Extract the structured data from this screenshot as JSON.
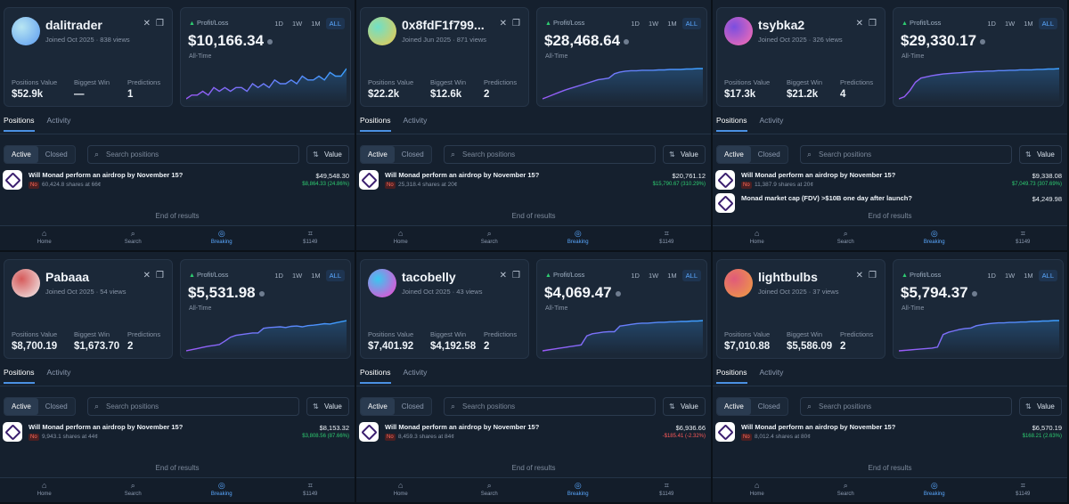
{
  "nav": {
    "home": "Home",
    "search": "Search",
    "breaking": "Breaking",
    "portfolio": "$1149"
  },
  "icons": {
    "profile_a": "crossed-arrows-icon",
    "profile_b": "gift-icon",
    "search": "search-icon",
    "sort": "sort-icon",
    "home": "home-icon",
    "breaking": "breaking-icon",
    "portfolio": "chart-icon"
  },
  "labels": {
    "pnl": "Profit/Loss",
    "alltime": "All-Time",
    "ranges": [
      "1D",
      "1W",
      "1M",
      "ALL"
    ],
    "positions_value": "Positions Value",
    "biggest_win": "Biggest Win",
    "predictions": "Predictions",
    "tab_positions": "Positions",
    "tab_activity": "Activity",
    "active": "Active",
    "closed": "Closed",
    "search_placeholder": "Search positions",
    "value_btn": "Value",
    "end": "End of results",
    "no": "No"
  },
  "colors": {
    "up": "#2ecc71",
    "down": "#ff5a5a",
    "accent": "#4a90e2"
  },
  "panels": [
    {
      "username": "dalitrader",
      "joined": "Joined Oct 2025 · 838 views",
      "pnl": "$10,166.34",
      "positions_value": "$52.9k",
      "biggest_win": "—",
      "predictions": "1",
      "avatar": [
        "#5b9bf0",
        "#b8e6f2"
      ],
      "chart_data": {
        "type": "line",
        "values": [
          2,
          3,
          3,
          4,
          3,
          5,
          4,
          5,
          4,
          5,
          5,
          4,
          6,
          5,
          6,
          5,
          7,
          6,
          6,
          7,
          6,
          8,
          7,
          7,
          8,
          7,
          9,
          8,
          8,
          10
        ]
      },
      "positions": [
        {
          "title": "Will Monad perform an airdrop by November 15?",
          "shares": "60,424.8 shares at 66¢",
          "value": "$49,548.30",
          "change": "$8,864.33 (24.86%)",
          "dir": "up"
        }
      ]
    },
    {
      "username": "0x8fdF1f799...",
      "joined": "Joined Jun 2025 · 871 views",
      "pnl": "$28,468.64",
      "positions_value": "$22.2k",
      "biggest_win": "$12.6k",
      "predictions": "2",
      "avatar": [
        "#f0c84a",
        "#6ee0c8"
      ],
      "chart_data": {
        "type": "line",
        "values": [
          1,
          1.5,
          2,
          2.5,
          3,
          3.4,
          3.8,
          4.2,
          4.6,
          5,
          5.4,
          5.6,
          5.8,
          6.8,
          7.2,
          7.4,
          7.5,
          7.5,
          7.6,
          7.6,
          7.6,
          7.7,
          7.7,
          7.8,
          7.8,
          7.8,
          7.9,
          7.9,
          8,
          8
        ]
      },
      "positions": [
        {
          "title": "Will Monad perform an airdrop by November 15?",
          "shares": "25,318.4 shares at 20¢",
          "value": "$20,761.12",
          "change": "$15,790.67 (310.29%)",
          "dir": "up"
        }
      ]
    },
    {
      "username": "tsybka2",
      "joined": "Joined Oct 2025 · 326 views",
      "pnl": "$29,330.17",
      "positions_value": "$17.3k",
      "biggest_win": "$21.2k",
      "predictions": "4",
      "avatar": [
        "#ff6fb0",
        "#7a4ee0"
      ],
      "chart_data": {
        "type": "line",
        "values": [
          1,
          1.5,
          3,
          5,
          6,
          6.3,
          6.6,
          6.8,
          7,
          7.1,
          7.2,
          7.3,
          7.4,
          7.5,
          7.6,
          7.6,
          7.7,
          7.7,
          7.8,
          7.8,
          7.9,
          7.9,
          8,
          8,
          8,
          8.1,
          8.1,
          8.2,
          8.2,
          8.3
        ]
      },
      "positions": [
        {
          "title": "Will Monad perform an airdrop by November 15?",
          "shares": "11,387.9 shares at 20¢",
          "value": "$9,338.08",
          "change": "$7,049.73 (307.69%)",
          "dir": "up"
        },
        {
          "title": "Monad market cap (FDV) >$10B one day after launch?",
          "shares": "",
          "value": "$4,249.98",
          "change": "",
          "dir": "down"
        }
      ]
    },
    {
      "username": "Pabaaa",
      "joined": "Joined Oct 2025 · 54 views",
      "pnl": "$5,531.98",
      "positions_value": "$8,700.19",
      "biggest_win": "$1,673.70",
      "predictions": "2",
      "avatar": [
        "#f2f2f2",
        "#d65a5a"
      ],
      "chart_data": {
        "type": "line",
        "values": [
          1,
          1.3,
          1.6,
          1.9,
          2.2,
          2.4,
          2.6,
          3.5,
          4.5,
          5,
          5.2,
          5.4,
          5.6,
          5.6,
          6.8,
          7,
          7.1,
          7.2,
          7,
          7.3,
          7.4,
          7.2,
          7.5,
          7.6,
          7.8,
          8,
          7.9,
          8.2,
          8.5,
          8.8
        ]
      },
      "positions": [
        {
          "title": "Will Monad perform an airdrop by November 15?",
          "shares": "9,943.1 shares at 44¢",
          "value": "$8,153.32",
          "change": "$3,808.56 (87.66%)",
          "dir": "up"
        }
      ]
    },
    {
      "username": "tacobelly",
      "joined": "Joined Oct 2025 · 43 views",
      "pnl": "$4,069.47",
      "positions_value": "$7,401.92",
      "biggest_win": "$4,192.58",
      "predictions": "2",
      "avatar": [
        "#ff3fd0",
        "#38c8f0"
      ],
      "chart_data": {
        "type": "line",
        "values": [
          1,
          1.2,
          1.4,
          1.6,
          1.8,
          2,
          2.2,
          2.4,
          4.5,
          5,
          5.2,
          5.4,
          5.5,
          5.5,
          6.8,
          7,
          7.2,
          7.4,
          7.5,
          7.5,
          7.6,
          7.7,
          7.7,
          7.8,
          7.8,
          7.9,
          7.9,
          8,
          8,
          8.1
        ]
      },
      "positions": [
        {
          "title": "Will Monad perform an airdrop by November 15?",
          "shares": "8,459.3 shares at 84¢",
          "value": "$6,936.66",
          "change": "-$185.41 (-2.32%)",
          "dir": "down"
        }
      ]
    },
    {
      "username": "lightbulbs",
      "joined": "Joined Oct 2025 · 37 views",
      "pnl": "$5,794.37",
      "positions_value": "$7,010.88",
      "biggest_win": "$5,586.09",
      "predictions": "2",
      "avatar": [
        "#f0a040",
        "#e05a7a"
      ],
      "chart_data": {
        "type": "line",
        "values": [
          1,
          1.1,
          1.2,
          1.3,
          1.4,
          1.5,
          1.6,
          1.8,
          4.5,
          5,
          5.3,
          5.6,
          5.8,
          5.9,
          6.4,
          6.6,
          6.8,
          6.9,
          7,
          7,
          7.1,
          7.1,
          7.2,
          7.2,
          7.3,
          7.3,
          7.4,
          7.4,
          7.5,
          7.5
        ]
      },
      "positions": [
        {
          "title": "Will Monad perform an airdrop by November 15?",
          "shares": "8,012.4 shares at 80¢",
          "value": "$6,570.19",
          "change": "$168.21 (2.63%)",
          "dir": "up"
        }
      ]
    }
  ]
}
